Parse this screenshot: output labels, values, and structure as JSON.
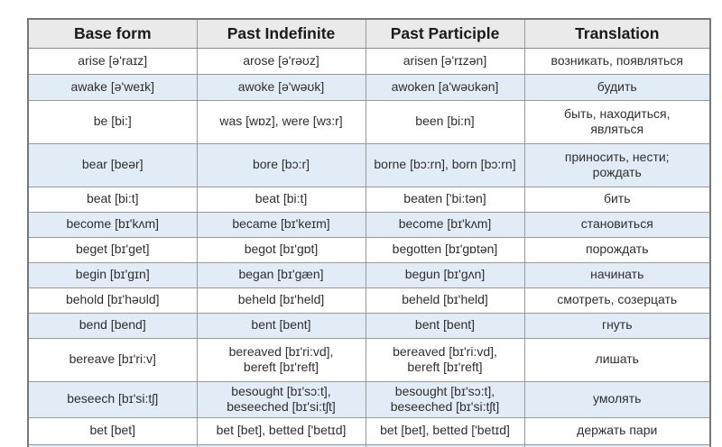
{
  "table": {
    "headers": [
      "Base form",
      "Past Indefinite",
      "Past Participle",
      "Translation"
    ],
    "rows": [
      {
        "base_form": "arise [ə'raɪz]",
        "past_indefinite": "arose [ə'rəʊz]",
        "past_participle": "arisen [ə'rɪzən]",
        "translation": "возникать, появляться"
      },
      {
        "base_form": "awake [ə'weɪk]",
        "past_indefinite": "awoke [ə'wəʊk]",
        "past_participle": "awoken [a'wəʊkən]",
        "translation": "будить"
      },
      {
        "base_form": "be [bi:]",
        "past_indefinite": "was [wɒz], were [wɜ:r]",
        "past_participle": "been [bi:n]",
        "translation": "быть, находиться,\nявляться"
      },
      {
        "base_form": "bear [beər]",
        "past_indefinite": "bore [bɔ:r]",
        "past_participle": "borne [bɔ:rn], born [bɔ:rn]",
        "translation": "приносить, нести;\nрождать"
      },
      {
        "base_form": "beat [bi:t]",
        "past_indefinite": "beat [bi:t]",
        "past_participle": "beaten ['bi:tən]",
        "translation": "бить"
      },
      {
        "base_form": "become [bɪ'kʌm]",
        "past_indefinite": "became [bɪ'keɪm]",
        "past_participle": "become [bɪ'kʌm]",
        "translation": "становиться"
      },
      {
        "base_form": "beget [bɪ'get]",
        "past_indefinite": "begot [bɪ'gɒt]",
        "past_participle": "begotten [bɪ'gɒtən]",
        "translation": "порождать"
      },
      {
        "base_form": "begin [bɪ'gɪn]",
        "past_indefinite": "began [bɪ'gæn]",
        "past_participle": "begun [bɪ'gʌn]",
        "translation": "начинать"
      },
      {
        "base_form": "behold [bɪ'həʊld]",
        "past_indefinite": "beheld [bɪ'held]",
        "past_participle": "beheld [bɪ'held]",
        "translation": "смотреть, созерцать"
      },
      {
        "base_form": "bend [bend]",
        "past_indefinite": "bent [bent]",
        "past_participle": "bent [bent]",
        "translation": "гнуть"
      },
      {
        "base_form": "bereave [bɪ'ri:v]",
        "past_indefinite": "bereaved [bɪ'ri:vd],\nbereft [bɪ'reft]",
        "past_participle": "bereaved [bɪ'ri:vd],\nbereft [bɪ'reft]",
        "translation": "лишать"
      },
      {
        "base_form": "beseech [bɪ'si:tʃ]",
        "past_indefinite": "besought [bɪ'sɔ:t],\nbeseeched [bɪ'si:tʃt]",
        "past_participle": "besought [bɪ'sɔ:t],\nbeseeched [bɪ'si:tʃt]",
        "translation": "умолять"
      },
      {
        "base_form": "bet [bet]",
        "past_indefinite": "bet [bet], betted ['betɪd]",
        "past_participle": "bet [bet], betted ['betɪd]",
        "translation": "держать пари"
      }
    ],
    "colors": {
      "header_bg": "#eaeaea",
      "row_alt_bg": "#e2ecf6",
      "row_bg": "#ffffff",
      "border": "#999999",
      "border_outer": "#777777",
      "text": "#2e2e2e",
      "header_text": "#1a1a1a",
      "page_bg": "#ffffff"
    }
  }
}
